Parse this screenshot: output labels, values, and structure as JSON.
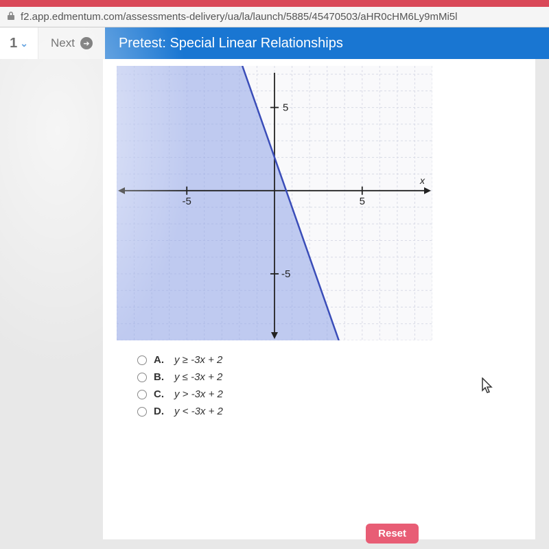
{
  "browser": {
    "url": "f2.app.edmentum.com/assessments-delivery/ua/la/launch/5885/45470503/aHR0cHM6Ly9mMi5l"
  },
  "nav": {
    "page_number": "1",
    "next_label": "Next",
    "title": "Pretest: Special Linear Relationships"
  },
  "graph": {
    "type": "inequality-plot",
    "x_range": [
      -9,
      9
    ],
    "y_range": [
      -9,
      7.5
    ],
    "x_tick": -5,
    "x_tick_label": "-5",
    "x_tick2": 5,
    "x_tick2_label": "5",
    "y_tick": 5,
    "y_tick_label": "5",
    "y_tick2": -5,
    "y_tick2_label": "-5",
    "x_axis_label": "x",
    "line": {
      "slope": -3,
      "intercept": 2,
      "style": "solid",
      "color": "#3a4db8",
      "width": 2.5
    },
    "shade": "left",
    "shade_color": "#8fa4e8",
    "shade_opacity": 0.55,
    "grid_color": "#d8dae6",
    "grid_dash": "3,3",
    "background": "#f9f9fb",
    "axis_color": "#222"
  },
  "options": [
    {
      "letter": "A.",
      "text": "y ≥ -3x + 2"
    },
    {
      "letter": "B.",
      "text": "y ≤ -3x + 2"
    },
    {
      "letter": "C.",
      "text": "y > -3x + 2"
    },
    {
      "letter": "D.",
      "text": "y < -3x + 2"
    }
  ],
  "reset_label": "Reset"
}
